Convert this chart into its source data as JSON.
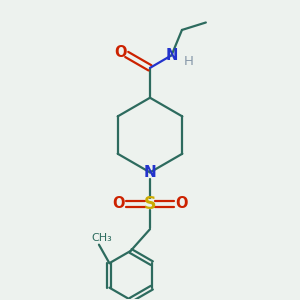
{
  "bg_color": "#edf2ee",
  "bond_color": "#2d6b5e",
  "N_color": "#2233cc",
  "O_color": "#cc2200",
  "S_color": "#ccaa00",
  "H_color": "#8899aa",
  "line_width": 1.6,
  "font_size": 10.5,
  "fig_size": [
    3.0,
    3.0
  ],
  "dpi": 100,
  "xlim": [
    0,
    10
  ],
  "ylim": [
    0,
    10
  ]
}
